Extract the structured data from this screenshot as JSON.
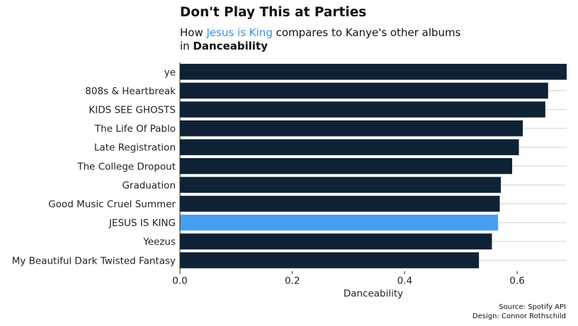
{
  "title": "Don't Play This at Parties",
  "subtitle": {
    "prefix": "How ",
    "highlight": "Jesus is King",
    "middle": " compares to Kanye's other albums",
    "line2_prefix": "in ",
    "metric": "Danceability"
  },
  "caption": {
    "source": "Source: Spotify API",
    "design": "Design: Connor Rothschild"
  },
  "colors": {
    "bar": "#0f2235",
    "highlight_bar": "#479ff0",
    "highlight_text": "#3b8ee8",
    "grid": "#d3d3d3"
  },
  "chart_data": {
    "type": "bar",
    "orientation": "horizontal",
    "categories": [
      "ye",
      "808s & Heartbreak",
      "KIDS SEE GHOSTS",
      "The Life Of Pablo",
      "Late Registration",
      "The College Dropout",
      "Graduation",
      "Good Music Cruel Summer",
      "JESUS IS KING",
      "Yeezus",
      "My Beautiful Dark Twisted Fantasy"
    ],
    "values": [
      0.688,
      0.655,
      0.65,
      0.61,
      0.603,
      0.591,
      0.571,
      0.569,
      0.566,
      0.555,
      0.532
    ],
    "highlight": "JESUS IS KING",
    "xlabel": "Danceability",
    "ylabel": "",
    "xlim": [
      0,
      0.688
    ],
    "xticks": [
      "0.0",
      "0.2",
      "0.4",
      "0.6"
    ],
    "xtick_values": [
      0,
      0.2,
      0.4,
      0.6
    ],
    "grid": "horizontal lines between bars",
    "legend": "none"
  }
}
